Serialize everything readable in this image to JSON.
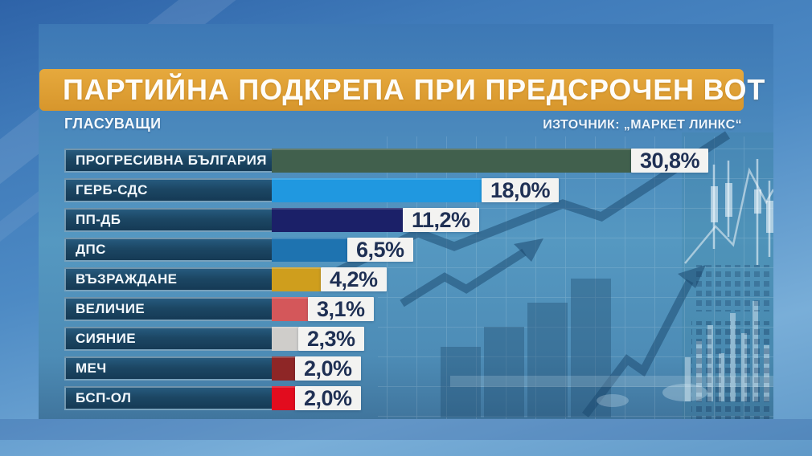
{
  "header": {
    "title": "ПАРТИЙНА ПОДКРЕПА ПРИ ПРЕДСРОЧЕН ВОТ",
    "audience_label": "ГЛАСУВАЩИ",
    "source_label": "ИЗТОЧНИК: „МАРКЕТ ЛИНКС“"
  },
  "colors": {
    "banner_bg": "#dd9c31",
    "label_box_bg": "#1d4660",
    "label_text": "#f2f8fd",
    "value_box_bg": "#f3f3f1",
    "value_text": "#1f3054",
    "panel_bg": "#4a88bc",
    "studio_bg": "#4d8ac4"
  },
  "chart_data": {
    "type": "bar",
    "orientation": "horizontal",
    "title": "ПАРТИЙНА ПОДКРЕПА ПРИ ПРЕДСРОЧЕН ВОТ",
    "subtitle": "ГЛАСУВАЩИ",
    "source": "ИЗТОЧНИК: „МАРКЕТ ЛИНКС“",
    "unit": "%",
    "xlim": [
      0,
      31
    ],
    "grid": false,
    "categories": [
      "ПРОГРЕСИВНА БЪЛГАРИЯ",
      "ГЕРБ-СДС",
      "ПП-ДБ",
      "ДПС",
      "ВЪЗРАЖДАНЕ",
      "ВЕЛИЧИЕ",
      "СИЯНИЕ",
      "МЕЧ",
      "БСП-ОЛ"
    ],
    "values": [
      30.8,
      18.0,
      11.2,
      6.5,
      4.2,
      3.1,
      2.3,
      2.0,
      2.0
    ],
    "value_labels": [
      "30,8%",
      "18,0%",
      "11,2%",
      "6,5%",
      "4,2%",
      "3,1%",
      "2,3%",
      "2,0%",
      "2,0%"
    ],
    "bar_colors": [
      "#41604d",
      "#2098e0",
      "#1b2068",
      "#1e73b0",
      "#cf9e1d",
      "#d4575a",
      "#cfcdca",
      "#8e2626",
      "#e20c1e"
    ]
  }
}
